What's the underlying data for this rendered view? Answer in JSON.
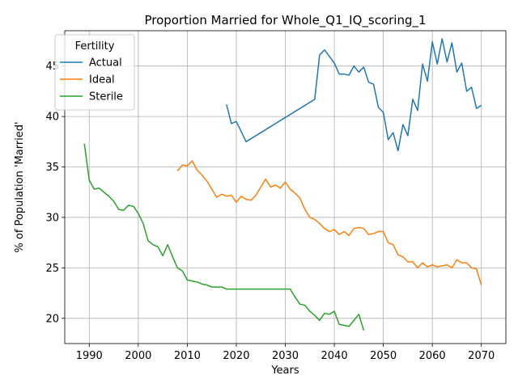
{
  "chart_data": {
    "type": "line",
    "title": "Proportion Married for Whole_Q1_IQ_scoring_1",
    "xlabel": "Years",
    "ylabel": "% of Population 'Married'",
    "xlim": [
      1985,
      2075
    ],
    "ylim": [
      17.5,
      48.5
    ],
    "xticks": [
      1990,
      2000,
      2010,
      2020,
      2030,
      2040,
      2050,
      2060,
      2070
    ],
    "yticks": [
      20,
      25,
      30,
      35,
      40,
      45
    ],
    "grid": true,
    "legend": {
      "title": "Fertility",
      "placement": "upper-left"
    },
    "series": [
      {
        "name": "Actual",
        "color": "#1f77b4",
        "points": [
          [
            2018,
            41.2
          ],
          [
            2019,
            39.3
          ],
          [
            2020,
            39.5
          ],
          [
            2022,
            37.5
          ],
          [
            2036,
            41.7
          ],
          [
            2037,
            46.1
          ],
          [
            2038,
            46.6
          ],
          [
            2040,
            45.3
          ],
          [
            2041,
            44.2
          ],
          [
            2042,
            44.2
          ],
          [
            2043,
            44.1
          ],
          [
            2044,
            45.0
          ],
          [
            2045,
            44.4
          ],
          [
            2046,
            44.9
          ],
          [
            2047,
            43.4
          ],
          [
            2048,
            43.2
          ],
          [
            2049,
            40.9
          ],
          [
            2050,
            40.4
          ],
          [
            2051,
            37.7
          ],
          [
            2052,
            38.4
          ],
          [
            2053,
            36.6
          ],
          [
            2054,
            39.2
          ],
          [
            2055,
            38.1
          ],
          [
            2056,
            41.7
          ],
          [
            2057,
            40.6
          ],
          [
            2058,
            45.2
          ],
          [
            2059,
            43.5
          ],
          [
            2060,
            47.4
          ],
          [
            2061,
            45.2
          ],
          [
            2062,
            47.7
          ],
          [
            2063,
            45.4
          ],
          [
            2064,
            47.3
          ],
          [
            2065,
            44.4
          ],
          [
            2066,
            45.3
          ],
          [
            2067,
            42.5
          ],
          [
            2068,
            42.9
          ],
          [
            2069,
            40.8
          ],
          [
            2070,
            41.1
          ]
        ]
      },
      {
        "name": "Ideal",
        "color": "#ff7f0e",
        "points": [
          [
            2008,
            34.6
          ],
          [
            2009,
            35.2
          ],
          [
            2010,
            35.1
          ],
          [
            2011,
            35.6
          ],
          [
            2012,
            34.7
          ],
          [
            2013,
            34.2
          ],
          [
            2014,
            33.6
          ],
          [
            2015,
            32.8
          ],
          [
            2016,
            32.0
          ],
          [
            2017,
            32.3
          ],
          [
            2018,
            32.1
          ],
          [
            2019,
            32.2
          ],
          [
            2020,
            31.5
          ],
          [
            2021,
            32.1
          ],
          [
            2022,
            31.8
          ],
          [
            2023,
            31.7
          ],
          [
            2024,
            32.2
          ],
          [
            2025,
            33.0
          ],
          [
            2026,
            33.8
          ],
          [
            2027,
            33.0
          ],
          [
            2028,
            33.2
          ],
          [
            2029,
            32.9
          ],
          [
            2030,
            33.5
          ],
          [
            2031,
            32.8
          ],
          [
            2032,
            32.4
          ],
          [
            2033,
            31.9
          ],
          [
            2034,
            30.8
          ],
          [
            2035,
            30.0
          ],
          [
            2036,
            29.8
          ],
          [
            2037,
            29.4
          ],
          [
            2038,
            28.9
          ],
          [
            2039,
            28.6
          ],
          [
            2040,
            28.8
          ],
          [
            2041,
            28.3
          ],
          [
            2042,
            28.6
          ],
          [
            2043,
            28.2
          ],
          [
            2044,
            28.9
          ],
          [
            2045,
            29.0
          ],
          [
            2046,
            28.9
          ],
          [
            2047,
            28.3
          ],
          [
            2048,
            28.4
          ],
          [
            2049,
            28.6
          ],
          [
            2050,
            28.6
          ],
          [
            2051,
            27.5
          ],
          [
            2052,
            27.3
          ],
          [
            2053,
            26.3
          ],
          [
            2054,
            26.1
          ],
          [
            2055,
            25.6
          ],
          [
            2056,
            25.6
          ],
          [
            2057,
            25.0
          ],
          [
            2058,
            25.5
          ],
          [
            2059,
            25.1
          ],
          [
            2060,
            25.3
          ],
          [
            2061,
            25.1
          ],
          [
            2062,
            25.2
          ],
          [
            2063,
            25.3
          ],
          [
            2064,
            25.0
          ],
          [
            2065,
            25.8
          ],
          [
            2066,
            25.5
          ],
          [
            2067,
            25.5
          ],
          [
            2068,
            25.0
          ],
          [
            2069,
            24.9
          ],
          [
            2070,
            23.3
          ]
        ]
      },
      {
        "name": "Sterile",
        "color": "#2ca02c",
        "points": [
          [
            1989,
            37.3
          ],
          [
            1990,
            33.7
          ],
          [
            1991,
            32.8
          ],
          [
            1992,
            32.9
          ],
          [
            1993,
            32.5
          ],
          [
            1994,
            32.1
          ],
          [
            1995,
            31.6
          ],
          [
            1996,
            30.8
          ],
          [
            1997,
            30.7
          ],
          [
            1998,
            31.2
          ],
          [
            1999,
            31.1
          ],
          [
            2000,
            30.4
          ],
          [
            2001,
            29.4
          ],
          [
            2002,
            27.7
          ],
          [
            2003,
            27.3
          ],
          [
            2004,
            27.1
          ],
          [
            2005,
            26.2
          ],
          [
            2006,
            27.3
          ],
          [
            2007,
            26.1
          ],
          [
            2008,
            25.0
          ],
          [
            2009,
            24.7
          ],
          [
            2010,
            23.8
          ],
          [
            2012,
            23.6
          ],
          [
            2013,
            23.4
          ],
          [
            2014,
            23.3
          ],
          [
            2015,
            23.1
          ],
          [
            2017,
            23.1
          ],
          [
            2018,
            22.9
          ],
          [
            2020,
            22.9
          ],
          [
            2031,
            22.9
          ],
          [
            2032,
            22.1
          ],
          [
            2033,
            21.4
          ],
          [
            2034,
            21.3
          ],
          [
            2035,
            20.7
          ],
          [
            2036,
            20.3
          ],
          [
            2037,
            19.8
          ],
          [
            2038,
            20.5
          ],
          [
            2039,
            20.4
          ],
          [
            2040,
            20.7
          ],
          [
            2041,
            19.4
          ],
          [
            2042,
            19.3
          ],
          [
            2043,
            19.2
          ],
          [
            2044,
            19.8
          ],
          [
            2045,
            20.4
          ],
          [
            2046,
            18.8
          ]
        ]
      }
    ]
  }
}
